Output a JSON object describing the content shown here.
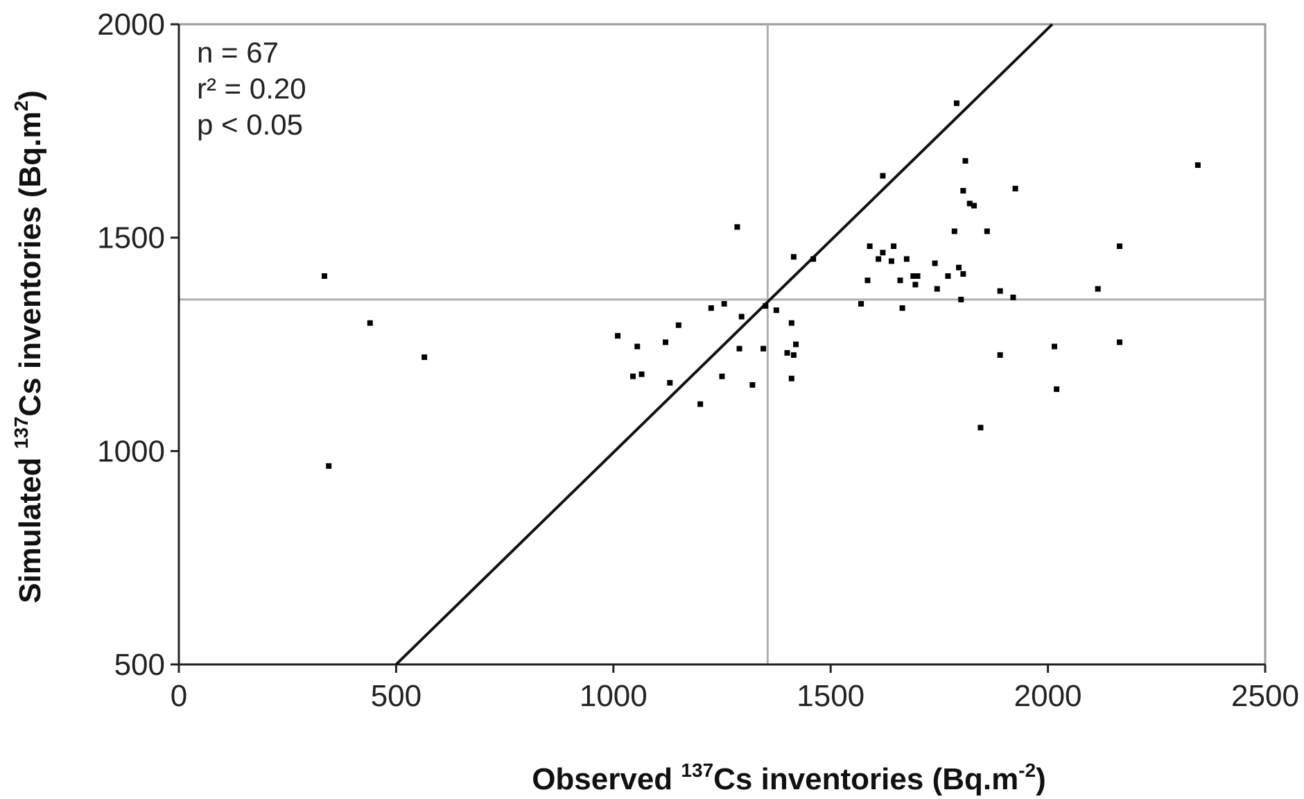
{
  "chart_data": {
    "type": "scatter",
    "title": "",
    "xlabel": {
      "pre": "Observed ",
      "sup": "137",
      "mid": "Cs inventories  (Bq.m",
      "sup2": "-2",
      "post": ")"
    },
    "ylabel": {
      "pre": "Simulated ",
      "sup": "137",
      "mid": "Cs inventories  (Bq.m",
      "sup2": "2",
      "post": ")"
    },
    "xlim": [
      0,
      2500
    ],
    "ylim": [
      500,
      2000
    ],
    "xticks": [
      "0",
      "500",
      "1000",
      "1500",
      "2000",
      "2500"
    ],
    "yticks": [
      "500",
      "1000",
      "1500",
      "2000"
    ],
    "grid": false,
    "reference_lines": {
      "x_mean": 1355,
      "y_mean": 1355
    },
    "identity_line": {
      "from": [
        500,
        500
      ],
      "to": [
        2010,
        2000
      ]
    },
    "stats": [
      "n = 67",
      "r² = 0.20",
      "p < 0.05"
    ],
    "points": [
      [
        335,
        1410
      ],
      [
        345,
        965
      ],
      [
        440,
        1300
      ],
      [
        565,
        1220
      ],
      [
        1010,
        1270
      ],
      [
        1045,
        1175
      ],
      [
        1055,
        1245
      ],
      [
        1065,
        1180
      ],
      [
        1120,
        1255
      ],
      [
        1130,
        1160
      ],
      [
        1150,
        1295
      ],
      [
        1200,
        1110
      ],
      [
        1225,
        1335
      ],
      [
        1250,
        1175
      ],
      [
        1255,
        1345
      ],
      [
        1285,
        1525
      ],
      [
        1290,
        1240
      ],
      [
        1295,
        1315
      ],
      [
        1320,
        1155
      ],
      [
        1345,
        1240
      ],
      [
        1350,
        1340
      ],
      [
        1375,
        1330
      ],
      [
        1400,
        1230
      ],
      [
        1410,
        1170
      ],
      [
        1410,
        1300
      ],
      [
        1415,
        1225
      ],
      [
        1415,
        1455
      ],
      [
        1420,
        1250
      ],
      [
        1460,
        1450
      ],
      [
        1570,
        1345
      ],
      [
        1585,
        1400
      ],
      [
        1590,
        1480
      ],
      [
        1610,
        1450
      ],
      [
        1620,
        1645
      ],
      [
        1620,
        1465
      ],
      [
        1640,
        1445
      ],
      [
        1645,
        1480
      ],
      [
        1660,
        1400
      ],
      [
        1665,
        1335
      ],
      [
        1675,
        1450
      ],
      [
        1690,
        1410
      ],
      [
        1695,
        1390
      ],
      [
        1700,
        1410
      ],
      [
        1740,
        1440
      ],
      [
        1745,
        1380
      ],
      [
        1770,
        1410
      ],
      [
        1785,
        1515
      ],
      [
        1790,
        1815
      ],
      [
        1795,
        1430
      ],
      [
        1800,
        1355
      ],
      [
        1805,
        1610
      ],
      [
        1805,
        1415
      ],
      [
        1810,
        1680
      ],
      [
        1820,
        1580
      ],
      [
        1830,
        1575
      ],
      [
        1845,
        1055
      ],
      [
        1860,
        1515
      ],
      [
        1890,
        1375
      ],
      [
        1890,
        1225
      ],
      [
        1920,
        1360
      ],
      [
        1925,
        1615
      ],
      [
        2015,
        1245
      ],
      [
        2020,
        1145
      ],
      [
        2115,
        1380
      ],
      [
        2165,
        1480
      ],
      [
        2165,
        1255
      ],
      [
        2345,
        1670
      ]
    ]
  }
}
